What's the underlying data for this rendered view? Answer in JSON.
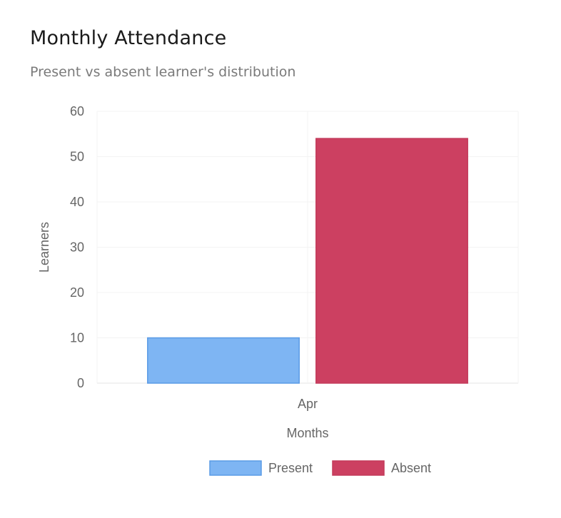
{
  "card": {
    "title": "Monthly Attendance",
    "subtitle": "Present vs absent learner's distribution"
  },
  "chart_data": {
    "type": "bar",
    "categories": [
      "Apr"
    ],
    "series": [
      {
        "name": "Present",
        "values": [
          10
        ],
        "color": "#7eb5f3",
        "border": "#5a9be6"
      },
      {
        "name": "Absent",
        "values": [
          54
        ],
        "color": "#cc4061",
        "border": "#c33a5a"
      }
    ],
    "xlabel": "Months",
    "ylabel": "Learners",
    "ylim": [
      0,
      60
    ],
    "yticks": [
      0,
      10,
      20,
      30,
      40,
      50,
      60
    ],
    "grid": true,
    "legend": "bottom"
  }
}
